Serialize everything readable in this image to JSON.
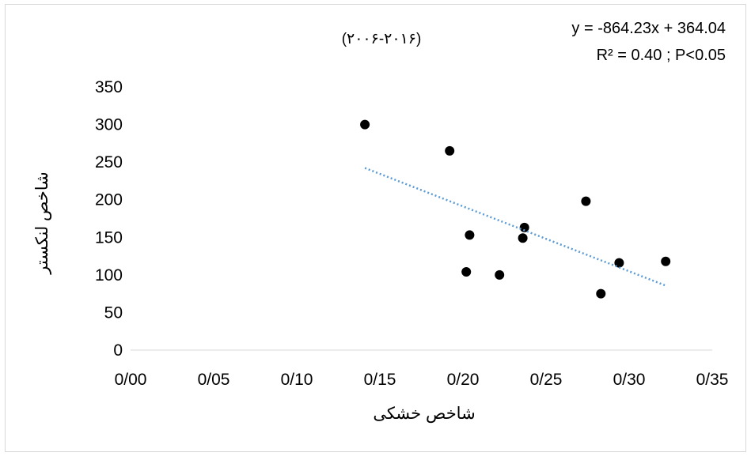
{
  "chart_data": {
    "type": "scatter",
    "title": "(۲۰۰۶-۲۰۱۶)",
    "xlabel": "شاخص خشکی",
    "ylabel": "شاخص لنکستر",
    "xlim": [
      0,
      0.35
    ],
    "ylim": [
      0,
      350
    ],
    "x_ticks": [
      0,
      0.05,
      0.1,
      0.15,
      0.2,
      0.25,
      0.3,
      0.35
    ],
    "x_tick_labels": [
      "0/00",
      "0/05",
      "0/10",
      "0/15",
      "0/20",
      "0/25",
      "0/30",
      "0/35"
    ],
    "y_ticks": [
      0,
      50,
      100,
      150,
      200,
      250,
      300,
      350
    ],
    "y_tick_labels": [
      "0",
      "50",
      "100",
      "150",
      "200",
      "250",
      "300",
      "350"
    ],
    "grid": false,
    "points": [
      {
        "x": 0.141,
        "y": 300
      },
      {
        "x": 0.192,
        "y": 265
      },
      {
        "x": 0.202,
        "y": 104
      },
      {
        "x": 0.204,
        "y": 153
      },
      {
        "x": 0.222,
        "y": 100
      },
      {
        "x": 0.236,
        "y": 149
      },
      {
        "x": 0.237,
        "y": 163
      },
      {
        "x": 0.274,
        "y": 198
      },
      {
        "x": 0.283,
        "y": 75
      },
      {
        "x": 0.294,
        "y": 116
      },
      {
        "x": 0.322,
        "y": 118
      }
    ],
    "point_color": "#000000",
    "trendline": {
      "slope": -864.23,
      "intercept": 364.04,
      "x_range": [
        0.141,
        0.322
      ],
      "color": "#5b9bd5",
      "style": "dotted"
    },
    "annotations": {
      "equation": "y = -864.23x + 364.04",
      "stats": "R² = 0.40 ; P<0.05"
    }
  }
}
